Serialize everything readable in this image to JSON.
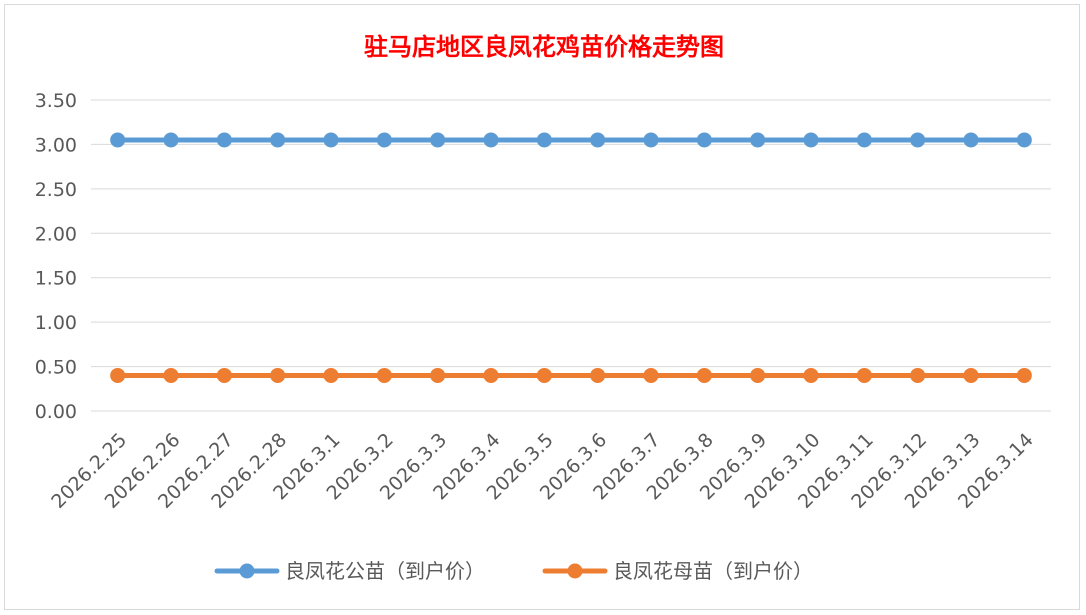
{
  "chart_data": {
    "type": "line",
    "title": "驻马店地区良凤花鸡苗价格走势图",
    "xlabel": "",
    "ylabel": "",
    "categories": [
      "2026.2.25",
      "2026.2.26",
      "2026.2.27",
      "2026.2.28",
      "2026.3.1",
      "2026.3.2",
      "2026.3.3",
      "2026.3.4",
      "2026.3.5",
      "2026.3.6",
      "2026.3.7",
      "2026.3.8",
      "2026.3.9",
      "2026.3.10",
      "2026.3.11",
      "2026.3.12",
      "2026.3.13",
      "2026.3.14"
    ],
    "ylim": [
      0,
      3.5
    ],
    "yticks": [
      "0.00",
      "0.50",
      "1.00",
      "1.50",
      "2.00",
      "2.50",
      "3.00",
      "3.50"
    ],
    "grid": true,
    "legend_position": "bottom",
    "series": [
      {
        "name": "良凤花公苗（到户价）",
        "color": "#5b9bd5",
        "values": [
          3.05,
          3.05,
          3.05,
          3.05,
          3.05,
          3.05,
          3.05,
          3.05,
          3.05,
          3.05,
          3.05,
          3.05,
          3.05,
          3.05,
          3.05,
          3.05,
          3.05,
          3.05
        ]
      },
      {
        "name": "良凤花母苗（到户价）",
        "color": "#ed7d31",
        "values": [
          0.4,
          0.4,
          0.4,
          0.4,
          0.4,
          0.4,
          0.4,
          0.4,
          0.4,
          0.4,
          0.4,
          0.4,
          0.4,
          0.4,
          0.4,
          0.4,
          0.4,
          0.4
        ]
      }
    ]
  }
}
